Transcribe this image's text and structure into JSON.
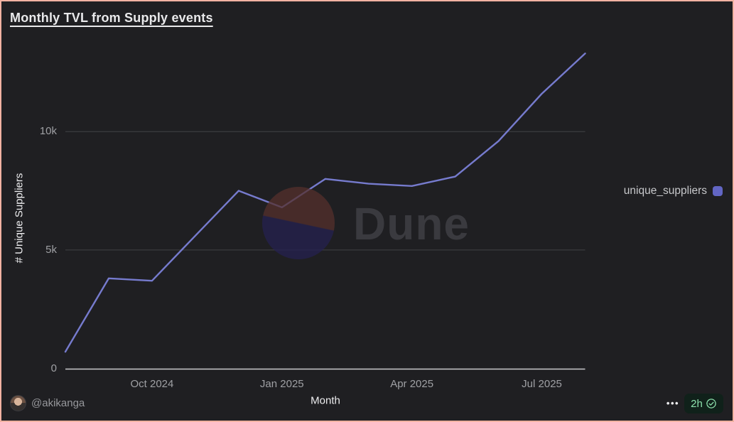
{
  "header": {
    "title": "Monthly TVL from Supply events"
  },
  "chart_data": {
    "type": "line",
    "title": "Monthly TVL from Supply events",
    "xlabel": "Month",
    "ylabel": "# Unique Suppliers",
    "categories": [
      "Aug 2024",
      "Sep 2024",
      "Oct 2024",
      "Nov 2024",
      "Dec 2024",
      "Jan 2025",
      "Feb 2025",
      "Mar 2025",
      "Apr 2025",
      "May 2025",
      "Jun 2025",
      "Jul 2025",
      "Aug 2025"
    ],
    "series": [
      {
        "name": "unique_suppliers",
        "color": "#767bce",
        "values": [
          700,
          3800,
          3700,
          5600,
          7500,
          6800,
          8000,
          7800,
          7700,
          8100,
          9600,
          11600,
          13300
        ]
      }
    ],
    "x_tick_labels": [
      "Oct 2024",
      "Jan 2025",
      "Apr 2025",
      "Jul 2025"
    ],
    "y_ticks": [
      {
        "value": 0,
        "label": "0"
      },
      {
        "value": 5000,
        "label": "5k"
      },
      {
        "value": 10000,
        "label": "10k"
      }
    ],
    "ylim": [
      0,
      14000
    ],
    "grid": "horizontal",
    "legend_position": "right"
  },
  "legend": {
    "label": "unique_suppliers",
    "marker_color": "#6266c4"
  },
  "watermark": {
    "text": "Dune"
  },
  "footer": {
    "username": "@akikanga",
    "more_label": "•••",
    "badge": {
      "age": "2h"
    }
  },
  "colors": {
    "background": "#1f1f22",
    "frame_border": "#f2b2a2",
    "line": "#767bce",
    "gridline": "#414246",
    "axis_line": "#c9cacd",
    "tick_text": "#9fa0a4",
    "badge_bg": "#10211a",
    "badge_green": "#8de2ad",
    "watermark_red": "#542f2b",
    "watermark_navy": "#242050",
    "watermark_text": "#3a3a3f"
  }
}
